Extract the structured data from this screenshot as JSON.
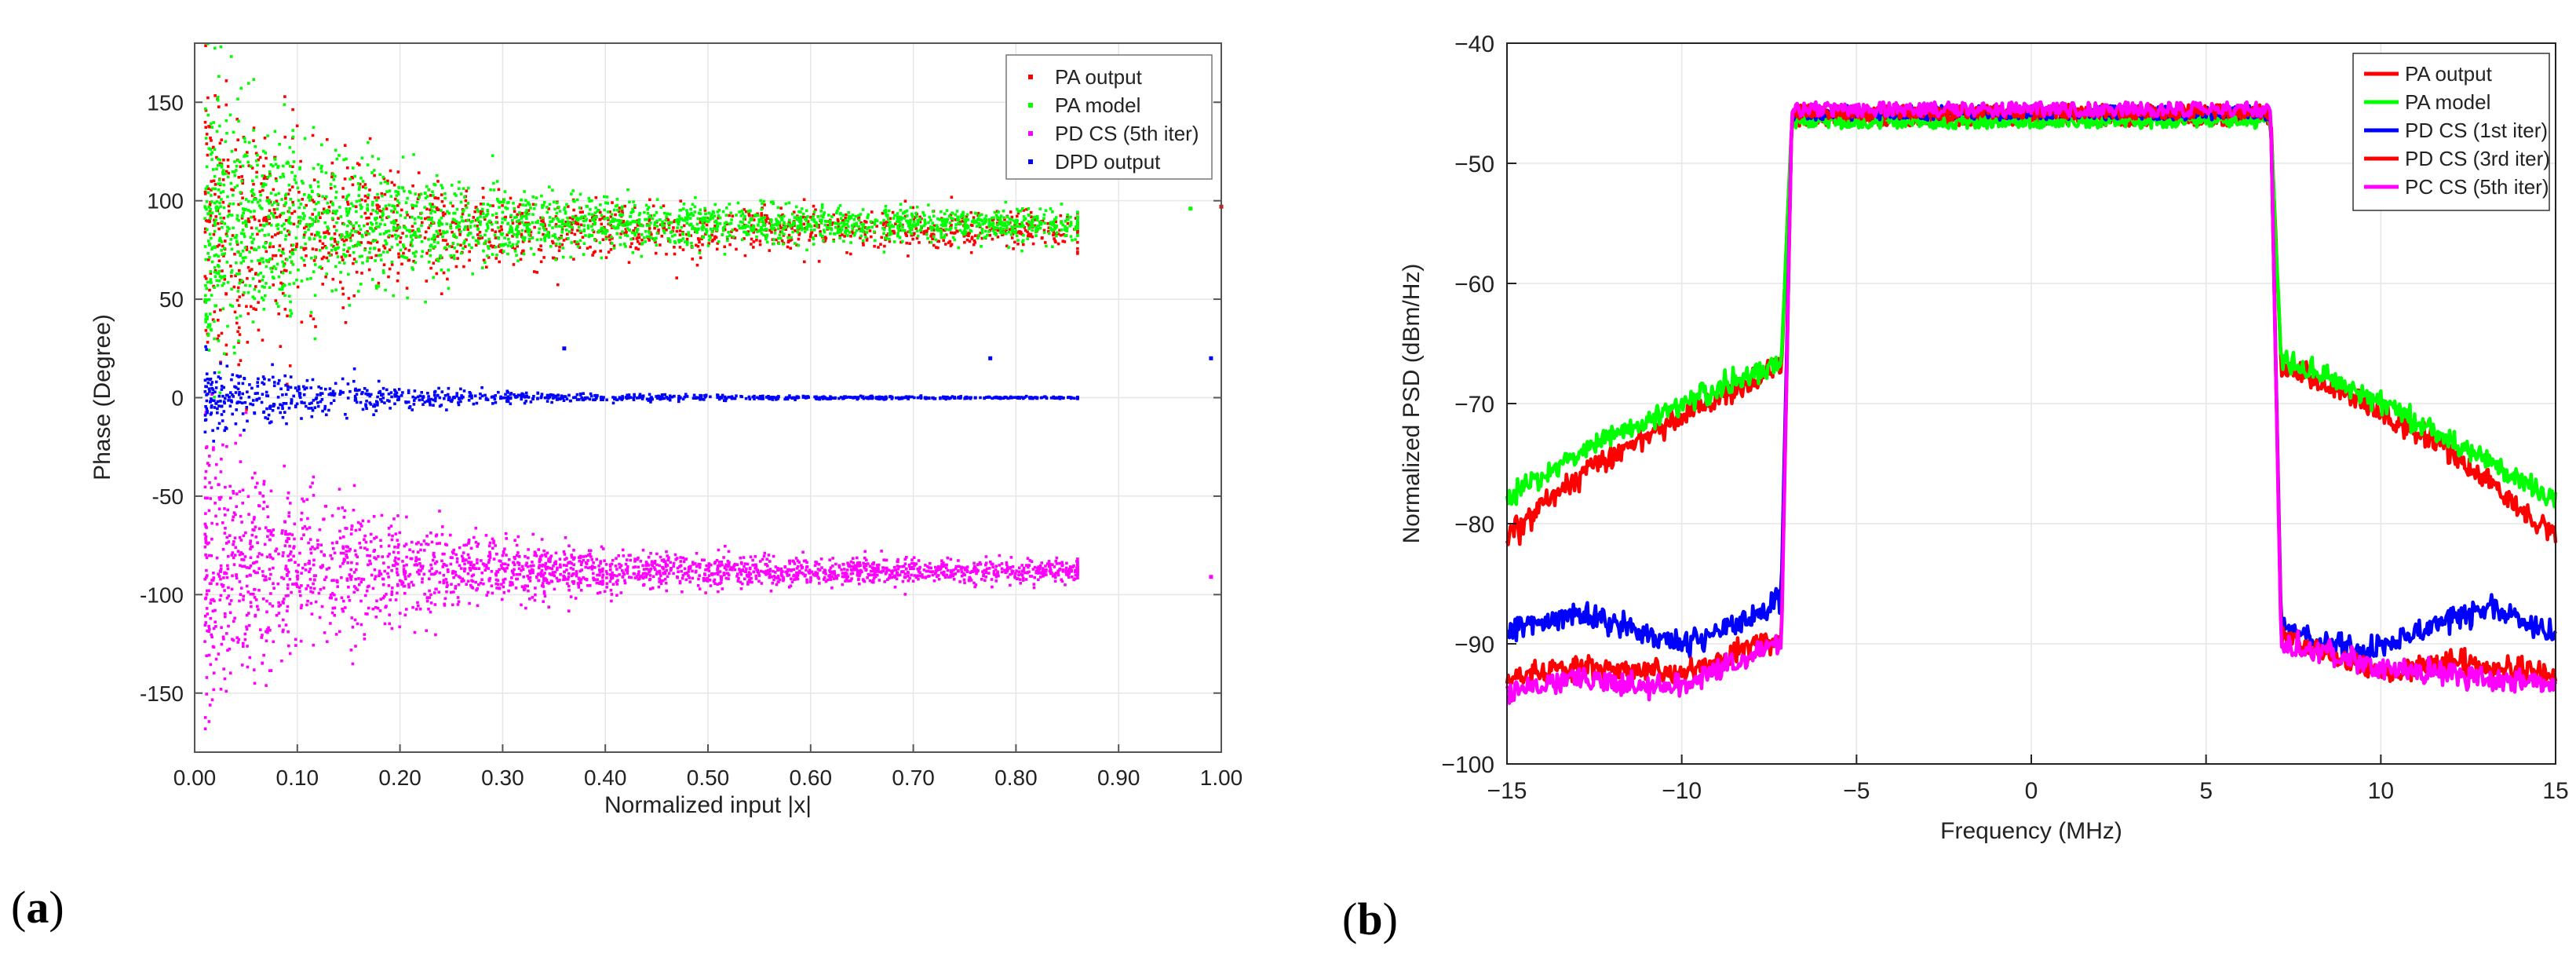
{
  "panels": [
    {
      "label_open": "(",
      "label_letter": "a",
      "label_close": ")"
    },
    {
      "label_open": "(",
      "label_letter": "b",
      "label_close": ")"
    }
  ],
  "chart_data": [
    {
      "type": "scatter",
      "title": "",
      "xlabel": "Normalized input |x|",
      "ylabel": "Phase (Degree)",
      "xlim": [
        0,
        1
      ],
      "ylim": [
        -180,
        180
      ],
      "xticks": [
        0,
        0.1,
        0.2,
        0.3,
        0.4,
        0.5,
        0.6,
        0.7,
        0.8,
        0.9,
        1.0
      ],
      "xtick_labels": [
        "0.00",
        "0.10",
        "0.20",
        "0.30",
        "0.40",
        "0.50",
        "0.60",
        "0.70",
        "0.80",
        "0.90",
        "1.00"
      ],
      "yticks": [
        -150,
        -100,
        -50,
        0,
        50,
        100,
        150
      ],
      "ytick_labels": [
        "-150",
        "-100",
        "-50",
        "0",
        "50",
        "100",
        "150"
      ],
      "grid": true,
      "legend_position": "top-right",
      "series": [
        {
          "name": "PA output",
          "color": "#ff0000",
          "center": 85,
          "spread_low_x": 90,
          "spread_high_x": 10,
          "points": 1400,
          "seed": 11
        },
        {
          "name": "PA model",
          "color": "#00ff00",
          "center": 88,
          "spread_low_x": 85,
          "spread_high_x": 8,
          "points": 2400,
          "seed": 23
        },
        {
          "name": "PD CS (5th iter)",
          "color": "#ff00ff",
          "center": -88,
          "spread_low_x": 85,
          "spread_high_x": 6,
          "points": 2400,
          "seed": 37
        },
        {
          "name": "DPD output",
          "color": "#0000ff",
          "center": 0,
          "spread_low_x": 22,
          "spread_high_x": 0.5,
          "points": 1000,
          "seed": 51
        }
      ],
      "outliers": [
        {
          "series": "DPD output",
          "x": 0.36,
          "y": 25
        },
        {
          "series": "DPD output",
          "x": 0.775,
          "y": 20
        },
        {
          "series": "DPD output",
          "x": 0.99,
          "y": 20
        },
        {
          "series": "PA output",
          "x": 1.0,
          "y": 97
        },
        {
          "series": "PA model",
          "x": 0.97,
          "y": 96
        },
        {
          "series": "PD CS (5th iter)",
          "x": 0.99,
          "y": -91
        }
      ]
    },
    {
      "type": "line",
      "title": "",
      "xlabel": "Frequency (MHz)",
      "ylabel": "Normalized PSD (dBm/Hz)",
      "xlim": [
        -15,
        15
      ],
      "ylim": [
        -100,
        -40
      ],
      "xticks": [
        -15,
        -10,
        -5,
        0,
        5,
        10,
        15
      ],
      "xtick_labels": [
        "−15",
        "−10",
        "−5",
        "0",
        "5",
        "10",
        "15"
      ],
      "yticks": [
        -100,
        -90,
        -80,
        -70,
        -60,
        -50,
        -40
      ],
      "ytick_labels": [
        "−100",
        "−90",
        "−80",
        "−70",
        "−60",
        "−50",
        "−40"
      ],
      "grid": true,
      "legend_position": "top-right",
      "band_edge_mhz": 7,
      "series": [
        {
          "name": "PA output",
          "color": "#ff0000",
          "inband": -46.3,
          "left": [
            [
              -15,
              -81
            ],
            [
              -13,
              -76
            ],
            [
              -10,
              -71
            ],
            [
              -7.2,
              -67
            ]
          ],
          "right": [
            [
              7.2,
              -67
            ],
            [
              9,
              -69
            ],
            [
              12,
              -74
            ],
            [
              15,
              -81
            ]
          ],
          "noise": 0.7,
          "seed": 3
        },
        {
          "name": "PA model",
          "color": "#00ff00",
          "inband": -46.5,
          "left": [
            [
              -15,
              -78
            ],
            [
              -13,
              -74
            ],
            [
              -10,
              -70
            ],
            [
              -7.2,
              -66.5
            ]
          ],
          "right": [
            [
              7.2,
              -66.5
            ],
            [
              9,
              -68.5
            ],
            [
              12,
              -73
            ],
            [
              15,
              -78
            ]
          ],
          "noise": 0.7,
          "seed": 5
        },
        {
          "name": "PD CS (1st iter)",
          "color": "#0000ff",
          "inband": -45.8,
          "left": [
            [
              -15,
              -89
            ],
            [
              -13,
              -87.5
            ],
            [
              -10,
              -90
            ],
            [
              -8,
              -88
            ],
            [
              -7.2,
              -86
            ]
          ],
          "right": [
            [
              7.2,
              -88.5
            ],
            [
              9.5,
              -91
            ],
            [
              11,
              -89
            ],
            [
              13,
              -87
            ],
            [
              15,
              -89
            ]
          ],
          "noise": 0.7,
          "seed": 7
        },
        {
          "name": "PD CS (3rd iter)",
          "color": "#ff0000",
          "inband": -45.7,
          "left": [
            [
              -15,
              -93
            ],
            [
              -13,
              -92
            ],
            [
              -10,
              -92.5
            ],
            [
              -7.2,
              -89.5
            ]
          ],
          "right": [
            [
              7.2,
              -89.5
            ],
            [
              10,
              -92.5
            ],
            [
              12,
              -91.5
            ],
            [
              15,
              -92.5
            ]
          ],
          "noise": 0.7,
          "seed": 9
        },
        {
          "name": "PC CS (5th iter)",
          "color": "#ff00ff",
          "inband": -45.5,
          "left": [
            [
              -15,
              -94
            ],
            [
              -13,
              -93
            ],
            [
              -10,
              -93.5
            ],
            [
              -7.2,
              -90
            ]
          ],
          "right": [
            [
              7.2,
              -90
            ],
            [
              10,
              -92
            ],
            [
              12,
              -92.5
            ],
            [
              15,
              -93.5
            ]
          ],
          "noise": 0.7,
          "seed": 13
        }
      ]
    }
  ]
}
